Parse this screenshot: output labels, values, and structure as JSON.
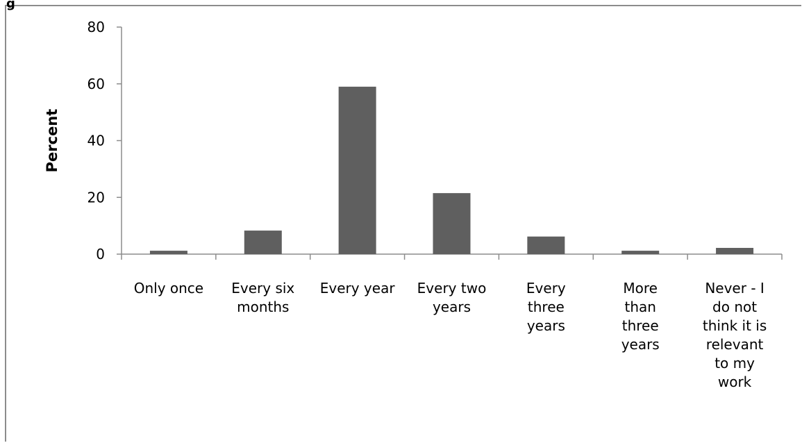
{
  "caption_fragment": "g",
  "chart_data": {
    "type": "bar",
    "categories": [
      [
        "Only once"
      ],
      [
        "Every six",
        "months"
      ],
      [
        "Every year"
      ],
      [
        "Every two",
        "years"
      ],
      [
        "Every",
        "three",
        "years"
      ],
      [
        "More",
        "than",
        "three",
        "years"
      ],
      [
        "Never - I",
        "do not",
        "think it is",
        "relevant",
        "to my",
        "work"
      ]
    ],
    "values": [
      1.2,
      8.3,
      59.0,
      21.5,
      6.2,
      1.2,
      2.2
    ],
    "title": "",
    "xlabel": "",
    "ylabel": "Percent",
    "ylim": [
      0,
      80
    ],
    "yticks": [
      0,
      20,
      40,
      60,
      80
    ],
    "grid": false,
    "legend": "none",
    "bar_color": "#5f5f5f",
    "axis_color": "#8c8c8c"
  }
}
